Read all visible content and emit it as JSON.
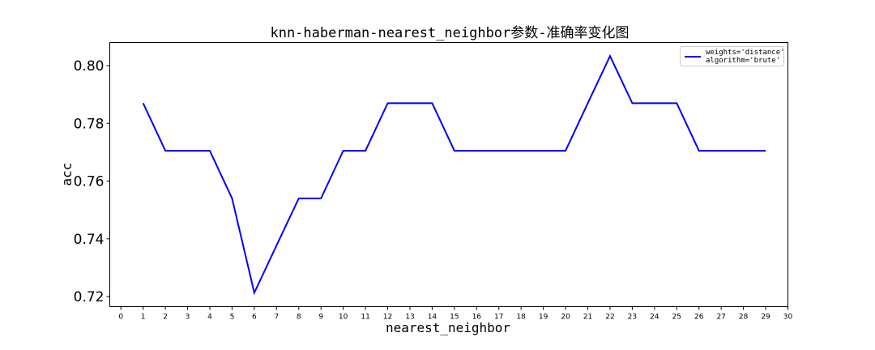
{
  "chart_data": {
    "type": "line",
    "title": "knn-haberman-nearest_neighbor参数-准确率变化图",
    "xlabel": "nearest_neighbor",
    "ylabel": "acc",
    "xlim": [
      -0.5,
      30
    ],
    "ylim": [
      0.7165,
      0.808
    ],
    "xticks": [
      0,
      1,
      2,
      3,
      4,
      5,
      6,
      7,
      8,
      9,
      10,
      11,
      12,
      13,
      14,
      15,
      16,
      17,
      18,
      19,
      20,
      21,
      22,
      23,
      24,
      25,
      26,
      27,
      28,
      29,
      30
    ],
    "yticks": [
      0.72,
      0.74,
      0.76,
      0.78,
      0.8
    ],
    "ytick_labels": [
      "0.72",
      "0.74",
      "0.76",
      "0.78",
      "0.80"
    ],
    "grid": false,
    "legend_position": "top-right",
    "color": "#0000ff",
    "series": [
      {
        "legend_lines": [
          "weights='distance'",
          "algorithm='brute'"
        ],
        "x": [
          1,
          2,
          3,
          4,
          5,
          6,
          7,
          8,
          9,
          10,
          11,
          12,
          13,
          14,
          15,
          16,
          17,
          18,
          19,
          20,
          21,
          22,
          23,
          24,
          25,
          26,
          27,
          28,
          29
        ],
        "values": [
          0.787,
          0.7705,
          0.7705,
          0.7705,
          0.754,
          0.7213,
          0.7377,
          0.754,
          0.754,
          0.7705,
          0.7705,
          0.787,
          0.787,
          0.787,
          0.7705,
          0.7705,
          0.7705,
          0.7705,
          0.7705,
          0.7705,
          0.787,
          0.8033,
          0.787,
          0.787,
          0.787,
          0.7705,
          0.7705,
          0.7705,
          0.7705
        ]
      }
    ]
  }
}
